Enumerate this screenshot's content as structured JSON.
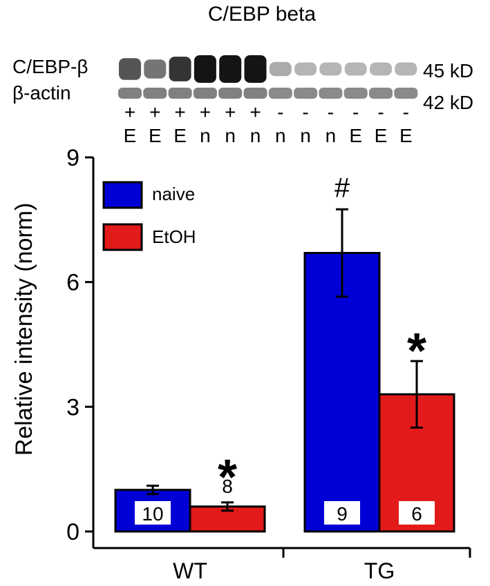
{
  "blot": {
    "title": "C/EBP beta",
    "row_labels": [
      "C/EBP-β",
      "β-actin"
    ],
    "weights": [
      "45 kD",
      "42 kD"
    ],
    "genotype_row": [
      "+",
      "+",
      "+",
      "+",
      "+",
      "+",
      "-",
      "-",
      "-",
      "-",
      "-",
      "-"
    ],
    "treatment_row": [
      "E",
      "E",
      "E",
      "n",
      "n",
      "n",
      "n",
      "n",
      "n",
      "E",
      "E",
      "E"
    ],
    "cebp_band_intensity": [
      0.7,
      0.55,
      0.85,
      1.0,
      1.0,
      1.0,
      0.3,
      0.25,
      0.25,
      0.25,
      0.25,
      0.25
    ],
    "actin_band_intensity": [
      0.5,
      0.5,
      0.5,
      0.5,
      0.5,
      0.5,
      0.45,
      0.45,
      0.45,
      0.45,
      0.45,
      0.45
    ]
  },
  "chart_data": {
    "type": "bar",
    "title": "",
    "xlabel": "",
    "ylabel": "Relative intensity (norm)",
    "categories": [
      "WT",
      "TG"
    ],
    "ylim": [
      0,
      9
    ],
    "yticks": [
      0,
      3,
      6,
      9
    ],
    "series": [
      {
        "name": "naive",
        "color": "#0000d6",
        "values": [
          1.0,
          6.7
        ],
        "errors": [
          0.1,
          1.05
        ],
        "n": [
          "10",
          "9"
        ]
      },
      {
        "name": "EtOH",
        "color": "#e31a1a",
        "values": [
          0.6,
          3.3
        ],
        "errors": [
          0.1,
          0.8
        ],
        "n": [
          "8",
          "6"
        ]
      }
    ],
    "annotations": [
      {
        "category": "WT",
        "series": "EtOH",
        "text": "*"
      },
      {
        "category": "TG",
        "series": "naive",
        "text": "#"
      },
      {
        "category": "TG",
        "series": "EtOH",
        "text": "*"
      }
    ],
    "legend": "top-left",
    "grid": false
  }
}
